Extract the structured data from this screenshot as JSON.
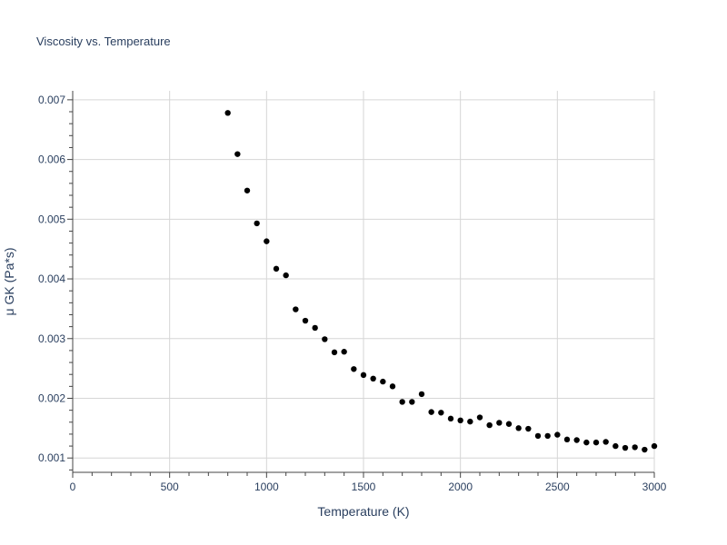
{
  "chart_data": {
    "type": "scatter",
    "title": "Viscosity vs. Temperature",
    "xlabel": "Temperature (K)",
    "ylabel": "μ GK (Pa*s)",
    "xlim": [
      0,
      3000
    ],
    "ylim": [
      0.00076,
      0.00715
    ],
    "x_ticks": [
      0,
      500,
      1000,
      1500,
      2000,
      2500,
      3000
    ],
    "x_tick_labels": [
      "0",
      "500",
      "1000",
      "1500",
      "2000",
      "2500",
      "3000"
    ],
    "y_ticks": [
      0.001,
      0.002,
      0.003,
      0.004,
      0.005,
      0.006,
      0.007
    ],
    "y_tick_labels": [
      "0.001",
      "0.002",
      "0.003",
      "0.004",
      "0.005",
      "0.006",
      "0.007"
    ],
    "grid": true,
    "marker_color": "#000000",
    "grid_color": "#d6d6d6",
    "text_color": "#2a3f5f",
    "x": [
      800,
      850,
      900,
      950,
      1000,
      1050,
      1100,
      1150,
      1200,
      1250,
      1300,
      1350,
      1400,
      1450,
      1500,
      1550,
      1600,
      1650,
      1700,
      1750,
      1800,
      1850,
      1900,
      1950,
      2000,
      2050,
      2100,
      2150,
      2200,
      2250,
      2300,
      2350,
      2400,
      2450,
      2500,
      2550,
      2600,
      2650,
      2700,
      2750,
      2800,
      2850,
      2900,
      2950,
      3000
    ],
    "y": [
      0.00678,
      0.00609,
      0.00548,
      0.00493,
      0.00463,
      0.00417,
      0.00406,
      0.00349,
      0.0033,
      0.00318,
      0.00299,
      0.00277,
      0.00278,
      0.00249,
      0.00239,
      0.00233,
      0.00228,
      0.0022,
      0.00194,
      0.00194,
      0.00207,
      0.00177,
      0.00176,
      0.00166,
      0.00163,
      0.00161,
      0.00168,
      0.00155,
      0.00159,
      0.00157,
      0.0015,
      0.00149,
      0.00137,
      0.00137,
      0.00139,
      0.00131,
      0.0013,
      0.00126,
      0.00126,
      0.00127,
      0.0012,
      0.00117,
      0.00118,
      0.00114,
      0.0012
    ]
  }
}
